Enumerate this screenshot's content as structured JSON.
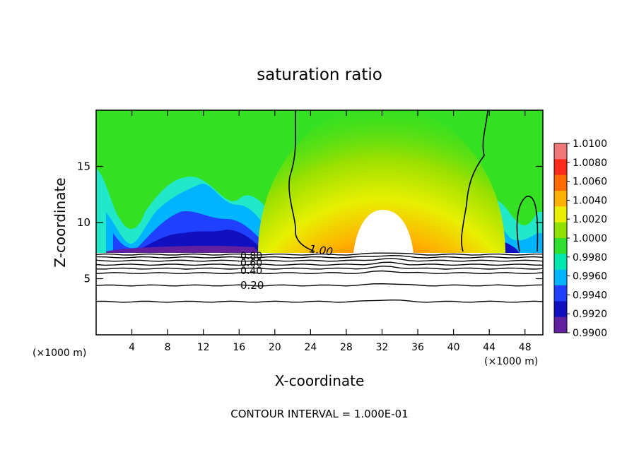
{
  "chart_data": {
    "type": "heatmap",
    "title": "saturation ratio",
    "xlabel": "X-coordinate",
    "ylabel": "Z-coordinate",
    "x_unit_left": "(×1000 m)",
    "x_unit_right": "(×1000 m)",
    "xlim": [
      0,
      50
    ],
    "ylim": [
      0,
      20
    ],
    "x_ticks": [
      4,
      8,
      12,
      16,
      20,
      24,
      28,
      32,
      36,
      40,
      44,
      48
    ],
    "x_tick_labels": [
      "4",
      "8",
      "12",
      "16",
      "20",
      "24",
      "28",
      "32",
      "36",
      "40",
      "44",
      "48"
    ],
    "y_ticks": [
      5,
      10,
      15
    ],
    "y_tick_labels": [
      "5",
      "10",
      "15"
    ],
    "colorbar": {
      "min": 0.99,
      "max": 1.01,
      "labels": [
        "1.0100",
        "1.0080",
        "1.0060",
        "1.0040",
        "1.0020",
        "1.0000",
        "0.9980",
        "0.9960",
        "0.9940",
        "0.9920",
        "0.9900"
      ],
      "colors": [
        "#f07878",
        "#ff2a1a",
        "#ff6a00",
        "#ffb000",
        "#e8f000",
        "#90e000",
        "#30e030",
        "#00e8b0",
        "#00b4ff",
        "#2040ff",
        "#1010c0",
        "#6020a0"
      ]
    },
    "contour_labels": [
      "1.00",
      "0.80",
      "0.60",
      "0.40",
      "0.20"
    ],
    "contour_levels": [
      0.1,
      0.2,
      0.3,
      0.4,
      0.5,
      0.6,
      0.7,
      0.8,
      0.9,
      1.0
    ],
    "footer": "CONTOUR INTERVAL = 1.000E-01"
  }
}
